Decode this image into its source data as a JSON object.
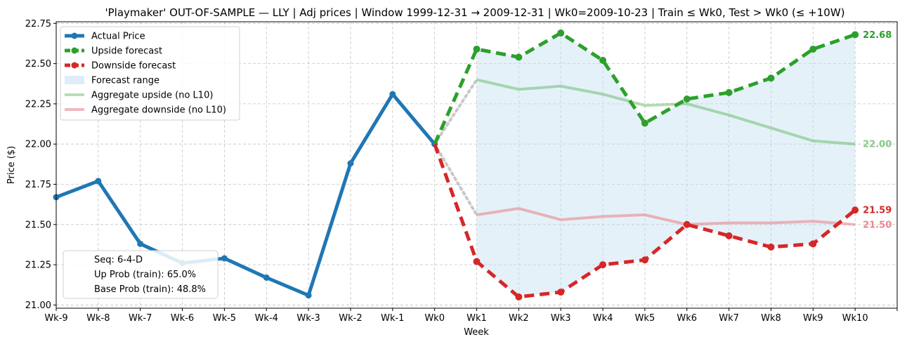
{
  "chart_data": {
    "type": "line",
    "title": "'Playmaker' OUT-OF-SAMPLE — LLY  |  Adj prices  |  Window 1999-12-31 → 2009-12-31  |  Wk0=2009-10-23  |  Train ≤ Wk0, Test > Wk0 (≤ +10W)",
    "xlabel": "Week",
    "ylabel": "Price ($)",
    "categories": [
      "Wk-9",
      "Wk-8",
      "Wk-7",
      "Wk-6",
      "Wk-5",
      "Wk-4",
      "Wk-3",
      "Wk-2",
      "Wk-1",
      "Wk0",
      "Wk1",
      "Wk2",
      "Wk3",
      "Wk4",
      "Wk5",
      "Wk6",
      "Wk7",
      "Wk8",
      "Wk9",
      "Wk10"
    ],
    "xlim": [
      -9,
      11
    ],
    "ylim": [
      20.98,
      22.76
    ],
    "yticks": [
      "21.00",
      "21.25",
      "21.50",
      "21.75",
      "22.00",
      "22.25",
      "22.50",
      "22.75"
    ],
    "grid": true,
    "legend_position": "top-left",
    "series": [
      {
        "name": "Actual Price",
        "x": [
          -9,
          -8,
          -7,
          -6,
          -5,
          -4,
          -3,
          -2,
          -1,
          0
        ],
        "values": [
          21.67,
          21.77,
          21.38,
          21.26,
          21.29,
          21.17,
          21.06,
          21.88,
          22.31,
          22.0
        ],
        "color": "#1f77b4"
      },
      {
        "name": "Upside forecast",
        "x": [
          0,
          1,
          2,
          3,
          4,
          5,
          6,
          7,
          8,
          9,
          10
        ],
        "values": [
          22.0,
          22.59,
          22.54,
          22.69,
          22.52,
          22.13,
          22.28,
          22.32,
          22.41,
          22.59,
          22.68
        ],
        "color": "#2ca02c"
      },
      {
        "name": "Downside forecast",
        "x": [
          0,
          1,
          2,
          3,
          4,
          5,
          6,
          7,
          8,
          9,
          10
        ],
        "values": [
          22.0,
          21.27,
          21.05,
          21.08,
          21.25,
          21.28,
          21.5,
          21.43,
          21.36,
          21.38,
          21.59
        ],
        "color": "#d62728"
      },
      {
        "name": "Aggregate upside (no L10)",
        "x": [
          1,
          2,
          3,
          4,
          5,
          6,
          7,
          8,
          9,
          10
        ],
        "values": [
          22.4,
          22.34,
          22.36,
          22.31,
          22.24,
          22.25,
          22.18,
          22.1,
          22.02,
          22.0
        ],
        "color": "#2ca02c"
      },
      {
        "name": "Aggregate downside (no L10)",
        "x": [
          1,
          2,
          3,
          4,
          5,
          6,
          7,
          8,
          9,
          10
        ],
        "values": [
          21.56,
          21.6,
          21.53,
          21.55,
          21.56,
          21.5,
          21.51,
          21.51,
          21.52,
          21.5
        ],
        "color": "#e8888f"
      }
    ],
    "forecast_range_label": "Forecast range",
    "forecast_range_color": "#c5dff0",
    "connector_color": "#c8c8c8",
    "end_labels": [
      {
        "text": "22.68",
        "value": 22.68,
        "color": "#2ca02c"
      },
      {
        "text": "22.00",
        "value": 22.0,
        "color": "#86c986"
      },
      {
        "text": "21.59",
        "value": 21.59,
        "color": "#d62728"
      },
      {
        "text": "21.50",
        "value": 21.5,
        "color": "#e8888f"
      }
    ],
    "annotation_lines": [
      "Seq: 6-4-D",
      "Up Prob (train): 65.0%",
      "Base Prob (train): 48.8%"
    ]
  }
}
